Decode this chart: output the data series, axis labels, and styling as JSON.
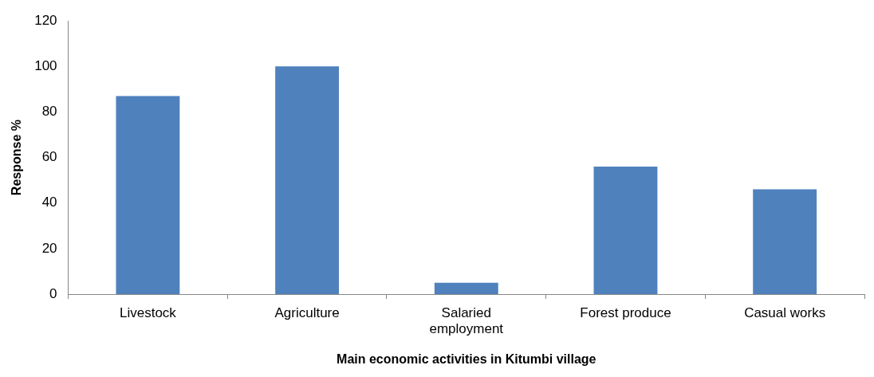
{
  "chart_data": {
    "type": "bar",
    "xlabel": "Main economic activities in Kitumbi village",
    "ylabel": "Response %",
    "categories": [
      "Livestock",
      "Agriculture",
      "Salaried employment",
      "Forest produce",
      "Casual works"
    ],
    "values": [
      87,
      100,
      5,
      56,
      46
    ],
    "color": "#4f81bd",
    "ylim": [
      0,
      120
    ],
    "yticks": [
      0,
      20,
      40,
      60,
      80,
      100,
      120
    ],
    "grid": false,
    "legend": false
  }
}
